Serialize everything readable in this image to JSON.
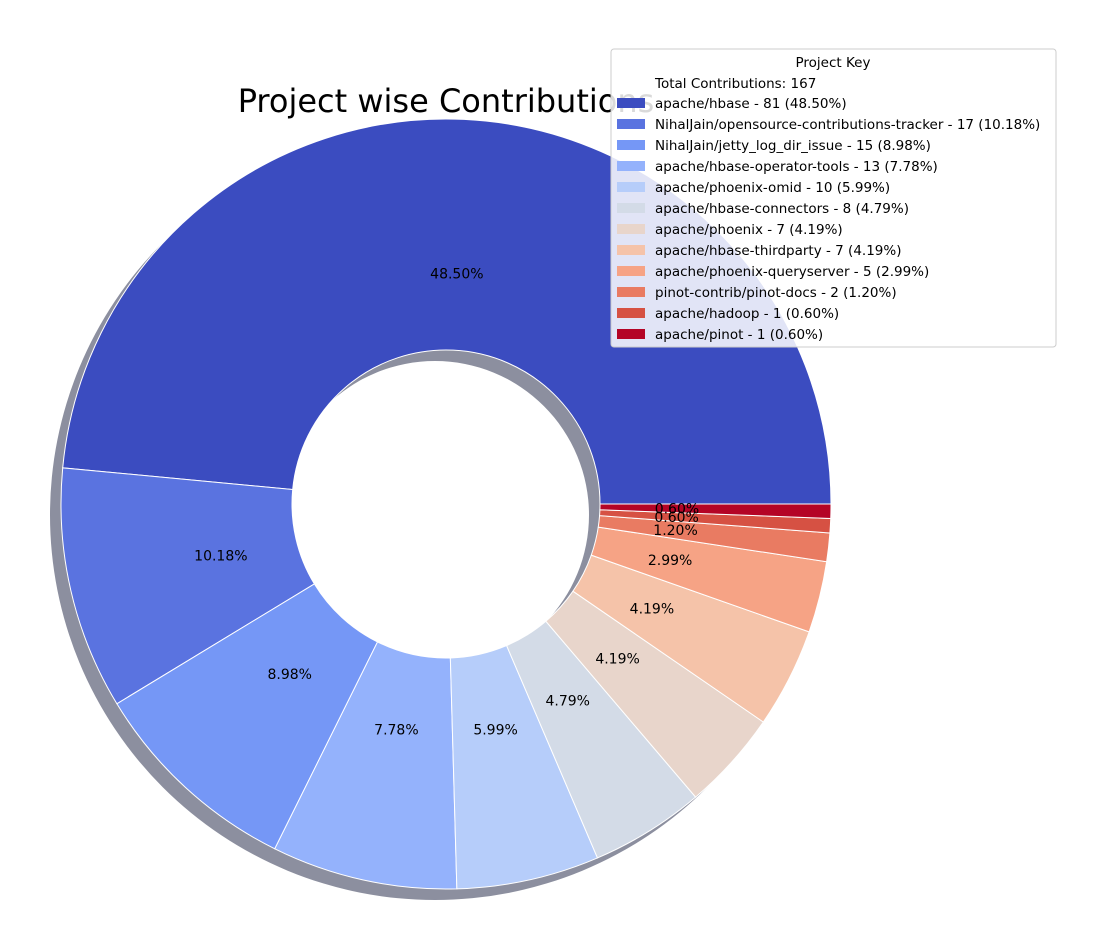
{
  "chart_data": {
    "type": "pie",
    "style": "donut",
    "title": "Project wise Contributions",
    "total_label": "Total Contributions: 167",
    "legend_title": "Project Key",
    "legend_placement": "top-right",
    "slices": [
      {
        "label": "apache/hbase",
        "value": 81,
        "percent_label": "48.50%",
        "legend": "apache/hbase - 81 (48.50%)",
        "color": "#3b4cc0"
      },
      {
        "label": "NihalJain/opensource-contributions-tracker",
        "value": 17,
        "percent_label": "10.18%",
        "legend": "NihalJain/opensource-contributions-tracker - 17 (10.18%)",
        "color": "#5a73e0"
      },
      {
        "label": "NihalJain/jetty_log_dir_issue",
        "value": 15,
        "percent_label": "8.98%",
        "legend": "NihalJain/jetty_log_dir_issue - 15 (8.98%)",
        "color": "#7597f6"
      },
      {
        "label": "apache/hbase-operator-tools",
        "value": 13,
        "percent_label": "7.78%",
        "legend": "apache/hbase-operator-tools - 13 (7.78%)",
        "color": "#94b2fc"
      },
      {
        "label": "apache/phoenix-omid",
        "value": 10,
        "percent_label": "5.99%",
        "legend": "apache/phoenix-omid - 10 (5.99%)",
        "color": "#b6cdfa"
      },
      {
        "label": "apache/hbase-connectors",
        "value": 8,
        "percent_label": "4.79%",
        "legend": "apache/hbase-connectors - 8 (4.79%)",
        "color": "#d3dbe7"
      },
      {
        "label": "apache/phoenix",
        "value": 7,
        "percent_label": "4.19%",
        "legend": "apache/phoenix - 7 (4.19%)",
        "color": "#e8d5cb"
      },
      {
        "label": "apache/hbase-thirdparty",
        "value": 7,
        "percent_label": "4.19%",
        "legend": "apache/hbase-thirdparty - 7 (4.19%)",
        "color": "#f5c3a9"
      },
      {
        "label": "apache/phoenix-queryserver",
        "value": 5,
        "percent_label": "2.99%",
        "legend": "apache/phoenix-queryserver - 5 (2.99%)",
        "color": "#f6a385"
      },
      {
        "label": "pinot-contrib/pinot-docs",
        "value": 2,
        "percent_label": "1.20%",
        "legend": "pinot-contrib/pinot-docs - 2 (1.20%)",
        "color": "#e97b62"
      },
      {
        "label": "apache/hadoop",
        "value": 1,
        "percent_label": "0.60%",
        "legend": "apache/hadoop - 1 (0.60%)",
        "color": "#d65143"
      },
      {
        "label": "apache/pinot",
        "value": 1,
        "percent_label": "0.60%",
        "legend": "apache/pinot - 1 (0.60%)",
        "color": "#b40426"
      }
    ]
  }
}
